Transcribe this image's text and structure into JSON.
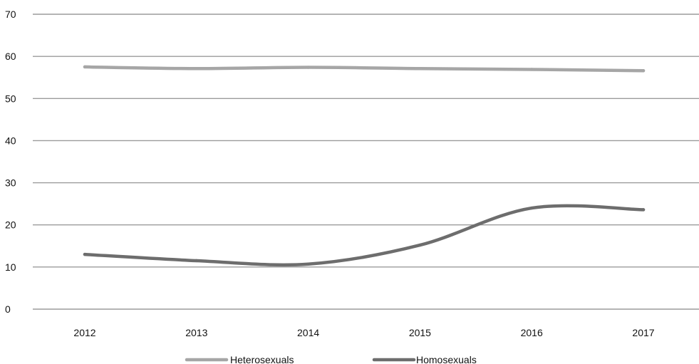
{
  "chart_data": {
    "type": "line",
    "categories": [
      "2012",
      "2013",
      "2014",
      "2015",
      "2016",
      "2017"
    ],
    "series": [
      {
        "name": "Heterosexuals",
        "values": [
          57.5,
          57.1,
          57.4,
          57.1,
          56.9,
          56.6
        ],
        "color": "#a6a6a6"
      },
      {
        "name": "Homosexuals",
        "values": [
          13,
          11.5,
          10.7,
          15.2,
          24,
          23.6
        ],
        "color": "#6d6d6d"
      }
    ],
    "yticks": [
      "0",
      "10",
      "20",
      "30",
      "40",
      "50",
      "60",
      "70"
    ],
    "ylim": [
      0,
      70
    ],
    "grid": true,
    "legend_position": "bottom",
    "smooth": true,
    "gridline_color": "#9b9b9b"
  }
}
